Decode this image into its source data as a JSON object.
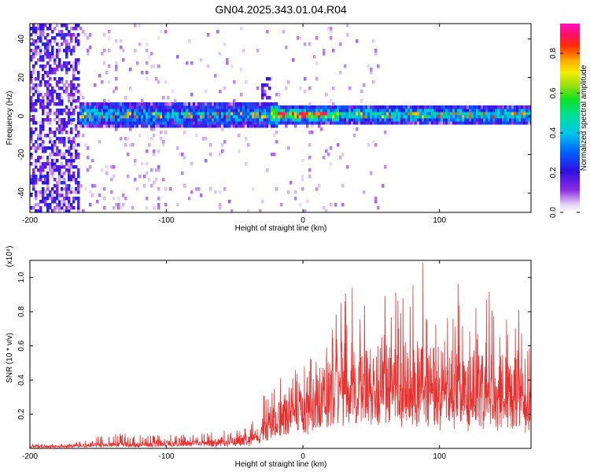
{
  "title": "GN04.2025.343.01.04.R04",
  "chart_data": [
    {
      "type": "heatmap",
      "xlabel": "Height of straight line (km)",
      "ylabel": "Frequency (Hz)",
      "xlim": [
        -200,
        167
      ],
      "ylim": [
        -50,
        48
      ],
      "xticks": [
        -200,
        -100,
        0,
        100
      ],
      "xtick_labels": [
        "-200",
        "-100",
        "0",
        "100"
      ],
      "yticks": [
        -40,
        -20,
        0,
        20,
        40
      ],
      "ytick_labels": [
        "-40",
        "-20",
        "0",
        "20",
        "40"
      ],
      "colorbar": {
        "label": "Normalized spectral amplitude",
        "range": [
          0,
          0.95
        ],
        "ticks": [
          0.0,
          0.2,
          0.4,
          0.6,
          0.8
        ],
        "tick_labels": [
          "0.0",
          "0.2",
          "0.4",
          "0.6",
          "0.8"
        ],
        "colormap": "rainbow (white-purple-blue-cyan-green-yellow-orange-red-magenta)"
      },
      "description_values": {
        "band_center_hz": 0,
        "broadband_noise_range_km": [
          -200,
          -160
        ],
        "peak_amplitude_range_km": [
          -20,
          20
        ]
      }
    },
    {
      "type": "line",
      "xlabel": "Height of straight line (km)",
      "ylabel": "SNR (10 * v/v)",
      "y_multiplier_label": "(x10⁴)",
      "xlim": [
        -200,
        167
      ],
      "ylim": [
        0,
        1.1
      ],
      "xticks": [
        -200,
        -100,
        0,
        100
      ],
      "xtick_labels": [
        "-200",
        "-100",
        "0",
        "100"
      ],
      "yticks": [
        0.2,
        0.4,
        0.6,
        0.8,
        1.0
      ],
      "ytick_labels": [
        "0.2",
        "0.4",
        "0.6",
        "0.8",
        "1.0"
      ],
      "series": [
        {
          "color": "#e8312f",
          "x": [
            -200,
            -180,
            -160,
            -140,
            -120,
            -100,
            -80,
            -60,
            -40,
            -30,
            -20,
            -10,
            0,
            10,
            20,
            30,
            40,
            50,
            60,
            70,
            80,
            90,
            100,
            110,
            120,
            130,
            140,
            150,
            160,
            167
          ],
          "y_baseline": [
            0.01,
            0.01,
            0.015,
            0.02,
            0.02,
            0.025,
            0.025,
            0.03,
            0.04,
            0.08,
            0.15,
            0.2,
            0.22,
            0.25,
            0.3,
            0.32,
            0.33,
            0.33,
            0.34,
            0.34,
            0.33,
            0.34,
            0.33,
            0.32,
            0.32,
            0.32,
            0.31,
            0.3,
            0.3,
            0.3
          ],
          "y_peak": [
            0.03,
            0.03,
            0.05,
            0.1,
            0.08,
            0.08,
            0.09,
            0.1,
            0.15,
            0.3,
            0.4,
            0.45,
            0.5,
            0.55,
            0.7,
            0.95,
            1.0,
            0.9,
            0.95,
            0.98,
            0.97,
            1.13,
            0.85,
            0.98,
            1.0,
            0.95,
            0.9,
            0.85,
            0.8,
            0.7
          ]
        }
      ]
    }
  ],
  "colors": {
    "snr_line": "#e8312f",
    "axis": "#000000",
    "background": "#ffffff"
  }
}
